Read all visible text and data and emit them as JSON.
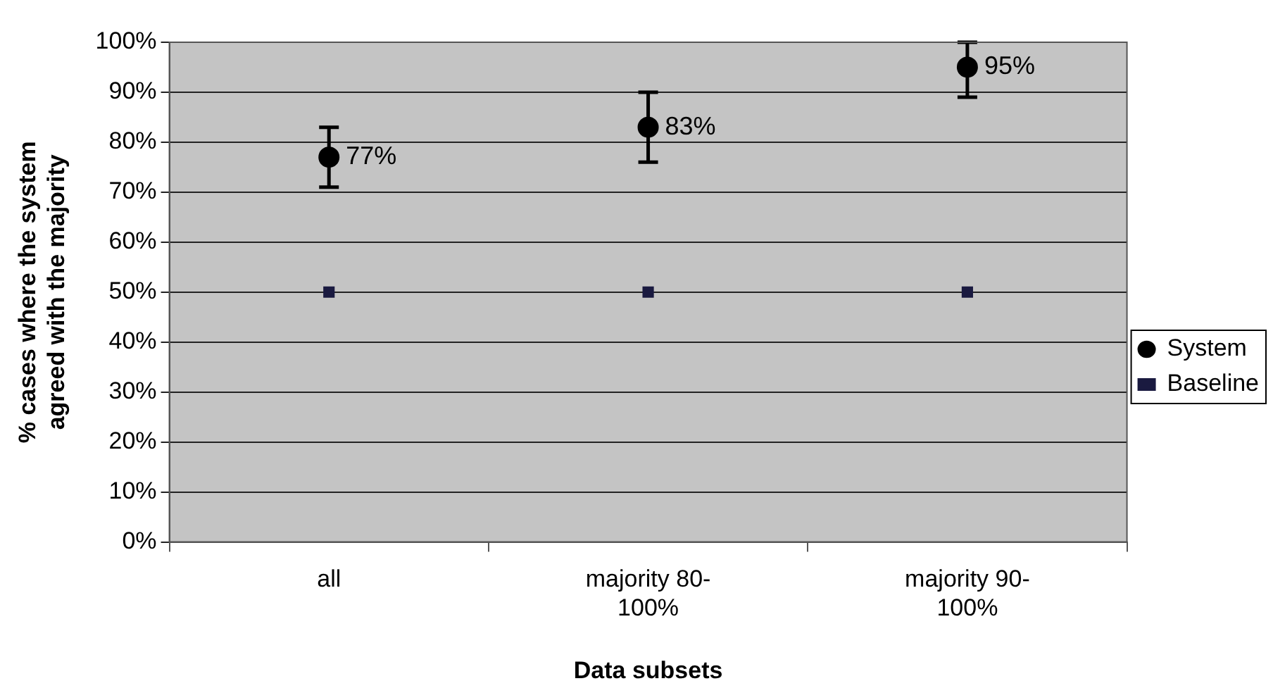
{
  "chart_data": {
    "type": "scatter",
    "xlabel": "Data subsets",
    "ylabel": "% cases where the system agreed with the majority",
    "categories": [
      "all",
      "majority 80-100%",
      "majority 90-100%"
    ],
    "series": [
      {
        "name": "System",
        "marker": "circle",
        "color": "#000000",
        "values": [
          77,
          83,
          95
        ],
        "errors": [
          6,
          7,
          [
            89,
            100
          ]
        ],
        "value_labels": [
          "77%",
          "83%",
          "95%"
        ]
      },
      {
        "name": "Baseline",
        "marker": "square",
        "color": "#1a1a40",
        "values": [
          50,
          50,
          50
        ]
      }
    ],
    "ylim": [
      0,
      100
    ],
    "yticks": [
      {
        "value": 0,
        "label": "0%"
      },
      {
        "value": 10,
        "label": "10%"
      },
      {
        "value": 20,
        "label": "20%"
      },
      {
        "value": 30,
        "label": "30%"
      },
      {
        "value": 40,
        "label": "40%"
      },
      {
        "value": 50,
        "label": "50%"
      },
      {
        "value": 60,
        "label": "60%"
      },
      {
        "value": 70,
        "label": "70%"
      },
      {
        "value": 80,
        "label": "80%"
      },
      {
        "value": 90,
        "label": "90%"
      },
      {
        "value": 100,
        "label": "100%"
      }
    ],
    "grid": "y",
    "legend": "right"
  }
}
